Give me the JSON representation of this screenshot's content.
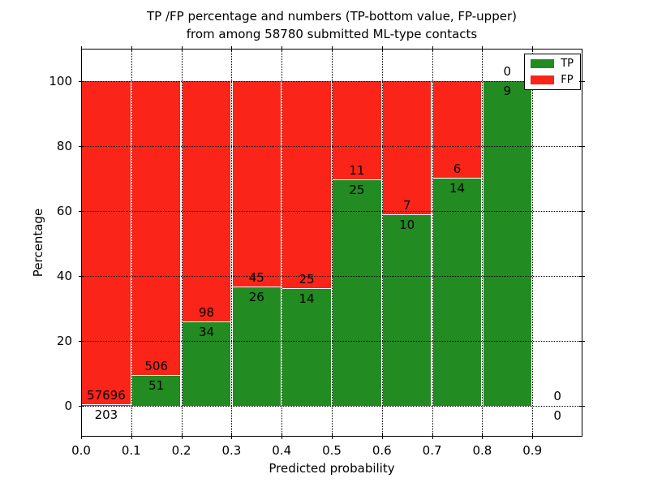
{
  "page": {
    "title_line1": "TP /FP percentage and numbers (TP-bottom value, FP-upper)",
    "title_line2": "from among 58780 submitted ML-type contacts"
  },
  "colors": {
    "tp": "#228b22",
    "fp": "#fa2418",
    "background": "#ffffff",
    "frame": "#000000",
    "grid": "#000000"
  },
  "chart_data": {
    "type": "bar",
    "stacked": true,
    "normalized_to_percent": true,
    "title": "TP /FP percentage and numbers (TP-bottom value, FP-upper)",
    "subtitle": "from among 58780 submitted ML-type contacts",
    "xlabel": "Predicted probability",
    "ylabel": "Percentage",
    "xlim": [
      0.0,
      1.0
    ],
    "ylim": [
      -10,
      110
    ],
    "x_tick_labels": [
      "0.0",
      "0.1",
      "0.2",
      "0.3",
      "0.4",
      "0.5",
      "0.6",
      "0.7",
      "0.8",
      "0.9"
    ],
    "y_tick_values": [
      0,
      20,
      40,
      60,
      80,
      100
    ],
    "grid": "dotted",
    "total_contacts": 58780,
    "legend": {
      "position": "upper-right",
      "entries": [
        {
          "label": "TP",
          "color": "#228b22"
        },
        {
          "label": "FP",
          "color": "#fa2418"
        }
      ]
    },
    "bins": [
      {
        "x_start": 0.0,
        "x_end": 0.1,
        "tp": 203,
        "fp": 57696,
        "tp_pct": 0.35,
        "fp_pct": 99.65
      },
      {
        "x_start": 0.1,
        "x_end": 0.2,
        "tp": 51,
        "fp": 506,
        "tp_pct": 9.16,
        "fp_pct": 90.84
      },
      {
        "x_start": 0.2,
        "x_end": 0.3,
        "tp": 34,
        "fp": 98,
        "tp_pct": 25.76,
        "fp_pct": 74.24
      },
      {
        "x_start": 0.3,
        "x_end": 0.4,
        "tp": 26,
        "fp": 45,
        "tp_pct": 36.62,
        "fp_pct": 63.38
      },
      {
        "x_start": 0.4,
        "x_end": 0.5,
        "tp": 14,
        "fp": 25,
        "tp_pct": 35.9,
        "fp_pct": 64.1
      },
      {
        "x_start": 0.5,
        "x_end": 0.6,
        "tp": 25,
        "fp": 11,
        "tp_pct": 69.44,
        "fp_pct": 30.56
      },
      {
        "x_start": 0.6,
        "x_end": 0.7,
        "tp": 10,
        "fp": 7,
        "tp_pct": 58.82,
        "fp_pct": 41.18
      },
      {
        "x_start": 0.7,
        "x_end": 0.8,
        "tp": 14,
        "fp": 6,
        "tp_pct": 70.0,
        "fp_pct": 30.0
      },
      {
        "x_start": 0.8,
        "x_end": 0.9,
        "tp": 9,
        "fp": 0,
        "tp_pct": 100.0,
        "fp_pct": 0.0
      },
      {
        "x_start": 0.9,
        "x_end": 1.0,
        "tp": 0,
        "fp": 0,
        "tp_pct": 0.0,
        "fp_pct": 0.0
      }
    ]
  }
}
